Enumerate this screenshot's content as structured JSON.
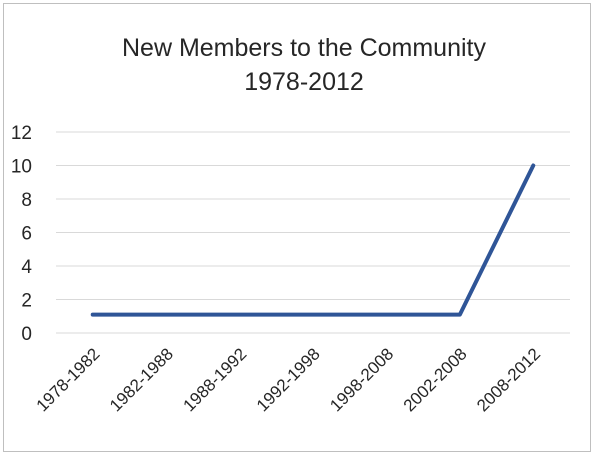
{
  "chart_data": {
    "type": "line",
    "title_lines": [
      "New Members to the Community",
      "1978-2012"
    ],
    "categories": [
      "1978-1982",
      "1982-1988",
      "1988-1992",
      "1992-1998",
      "1998-2008",
      "2002-2008",
      "2008-2012"
    ],
    "series": [
      {
        "values": [
          1.1,
          1.1,
          1.1,
          1.1,
          1.1,
          1.1,
          10
        ],
        "color": "#2f5597"
      }
    ],
    "yticks": [
      0,
      2,
      4,
      6,
      8,
      10,
      12
    ],
    "ylim": [
      0,
      12
    ],
    "grid": true,
    "legend": "none"
  }
}
